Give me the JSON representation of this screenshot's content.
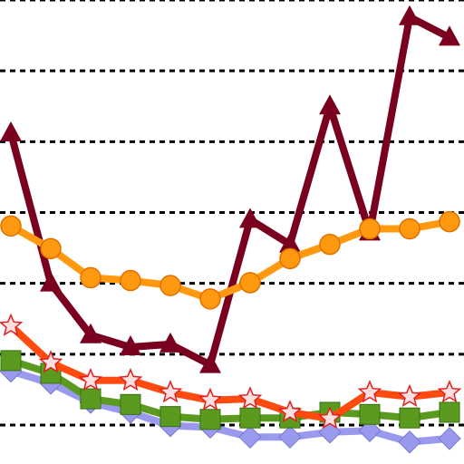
{
  "chart_data": {
    "type": "line",
    "categories": [
      null,
      null,
      null,
      null,
      null,
      null,
      null,
      null,
      null,
      null,
      null,
      null
    ],
    "ylim": [
      0.45,
      7.0
    ],
    "yticks": [
      1,
      2,
      3,
      4,
      5,
      6,
      7
    ],
    "grid": true,
    "series": [
      {
        "color": "#9999ee",
        "marker": "diamond",
        "values": [
          1.76,
          1.59,
          1.32,
          1.18,
          0.99,
          0.97,
          0.83,
          0.83,
          0.9,
          0.92,
          0.76,
          0.81
        ]
      },
      {
        "color": "#5a9a1e",
        "marker": "square",
        "values": [
          1.91,
          1.73,
          1.37,
          1.29,
          1.12,
          1.08,
          1.1,
          1.1,
          1.18,
          1.15,
          1.1,
          1.18
        ]
      },
      {
        "color": "#ff4a10",
        "marker": "star",
        "values": [
          2.4,
          1.88,
          1.63,
          1.63,
          1.46,
          1.35,
          1.37,
          1.18,
          1.09,
          1.46,
          1.4,
          1.46
        ]
      },
      {
        "color": "#7a0020",
        "marker": "triangle",
        "values": [
          5.12,
          3.0,
          2.27,
          2.1,
          2.14,
          1.85,
          3.9,
          3.55,
          5.5,
          3.72,
          6.76,
          6.47
        ]
      },
      {
        "color": "#ff9a10",
        "marker": "circle",
        "values": [
          3.81,
          3.49,
          3.08,
          3.04,
          2.97,
          2.78,
          3.01,
          3.35,
          3.55,
          3.77,
          3.77,
          3.87
        ]
      }
    ]
  }
}
